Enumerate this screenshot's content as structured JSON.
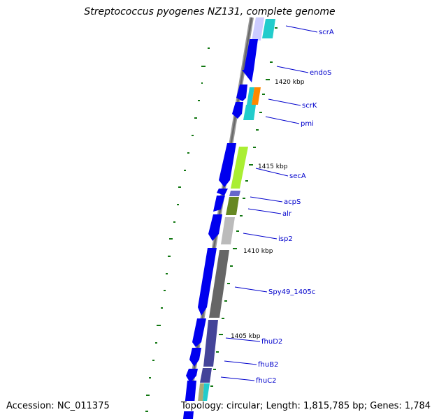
{
  "title": "Streptococcus pyogenes NZ131, complete genome",
  "footer": {
    "accession": "Accession: NC_011375",
    "topology": "Topology: circular; Length: 1,815,785 bp; Genes: 1,784"
  },
  "colors": {
    "backbone": "#777777",
    "cds": "#0000ff",
    "label_line": "#0000cc",
    "gc_tick": "#117711"
  },
  "position_markers": [
    "1420 kbp",
    "1415 kbp",
    "1410 kbp",
    "1405 kbp"
  ],
  "genes": [
    {
      "name": "scrA"
    },
    {
      "name": "endoS"
    },
    {
      "name": "scrK"
    },
    {
      "name": "pmi"
    },
    {
      "name": "secA"
    },
    {
      "name": "acpS"
    },
    {
      "name": "alr"
    },
    {
      "name": "isp2"
    },
    {
      "name": "Spy49_1405c"
    },
    {
      "name": "fhuD2"
    },
    {
      "name": "fhuB2"
    },
    {
      "name": "fhuC2"
    }
  ]
}
